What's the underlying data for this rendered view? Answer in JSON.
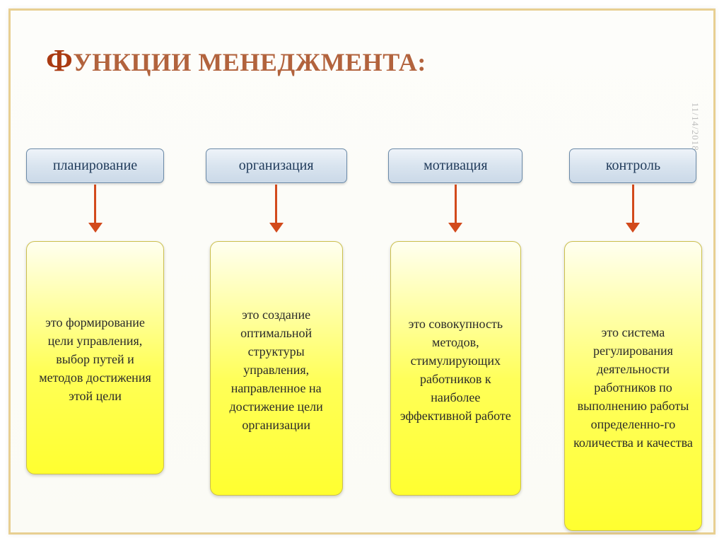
{
  "title_first_char": "Ф",
  "title_rest": "УНКЦИИ МЕНЕДЖМЕНТА:",
  "title_color_cap": "#aa3b12",
  "title_color_rest": "#b2633d",
  "date_label": "11/14/2018",
  "date_color": "#bdbdbd",
  "frame_border_color": "#e8cf92",
  "page_bg": "#fdfdfa",
  "head_box": {
    "bg": "linear-gradient(180deg,#eef3f9 0%,#d9e4ef 50%,#cbd9e8 100%)",
    "border_color": "#6b8aa8",
    "text_color": "#1f3a5a",
    "fontsize": 20,
    "radius": 7
  },
  "desc_box": {
    "bg": "linear-gradient(180deg,#fffff0 0%,#ffff58 55%,#ffff30 100%)",
    "border_color": "#cbbf4d",
    "text_color": "#2a2a2a",
    "fontsize": 18,
    "radius": 12
  },
  "arrow": {
    "color": "#d24a1c",
    "line_width": 3,
    "head_size": 10
  },
  "columns": [
    {
      "name": "planning",
      "head": "планирование",
      "desc": "это формирование цели управления, выбор путей и методов достижения этой цели",
      "head_width": 195,
      "desc_width": 195,
      "desc_min_height": 330
    },
    {
      "name": "organization",
      "head": "организация",
      "desc": "это создание оптимальной структуры управления, направленное на достижение цели организации",
      "head_width": 200,
      "desc_width": 188,
      "desc_min_height": 360
    },
    {
      "name": "motivation",
      "head": "мотивация",
      "desc": "это совокупность методов, стимулирующих работников к наиболее эффективной работе",
      "head_width": 190,
      "desc_width": 185,
      "desc_min_height": 360
    },
    {
      "name": "control",
      "head": "контроль",
      "desc": "это система регулирования деятельности работников по выполнению работы определенно-го количества и качества",
      "head_width": 180,
      "desc_width": 195,
      "desc_min_height": 410
    }
  ]
}
